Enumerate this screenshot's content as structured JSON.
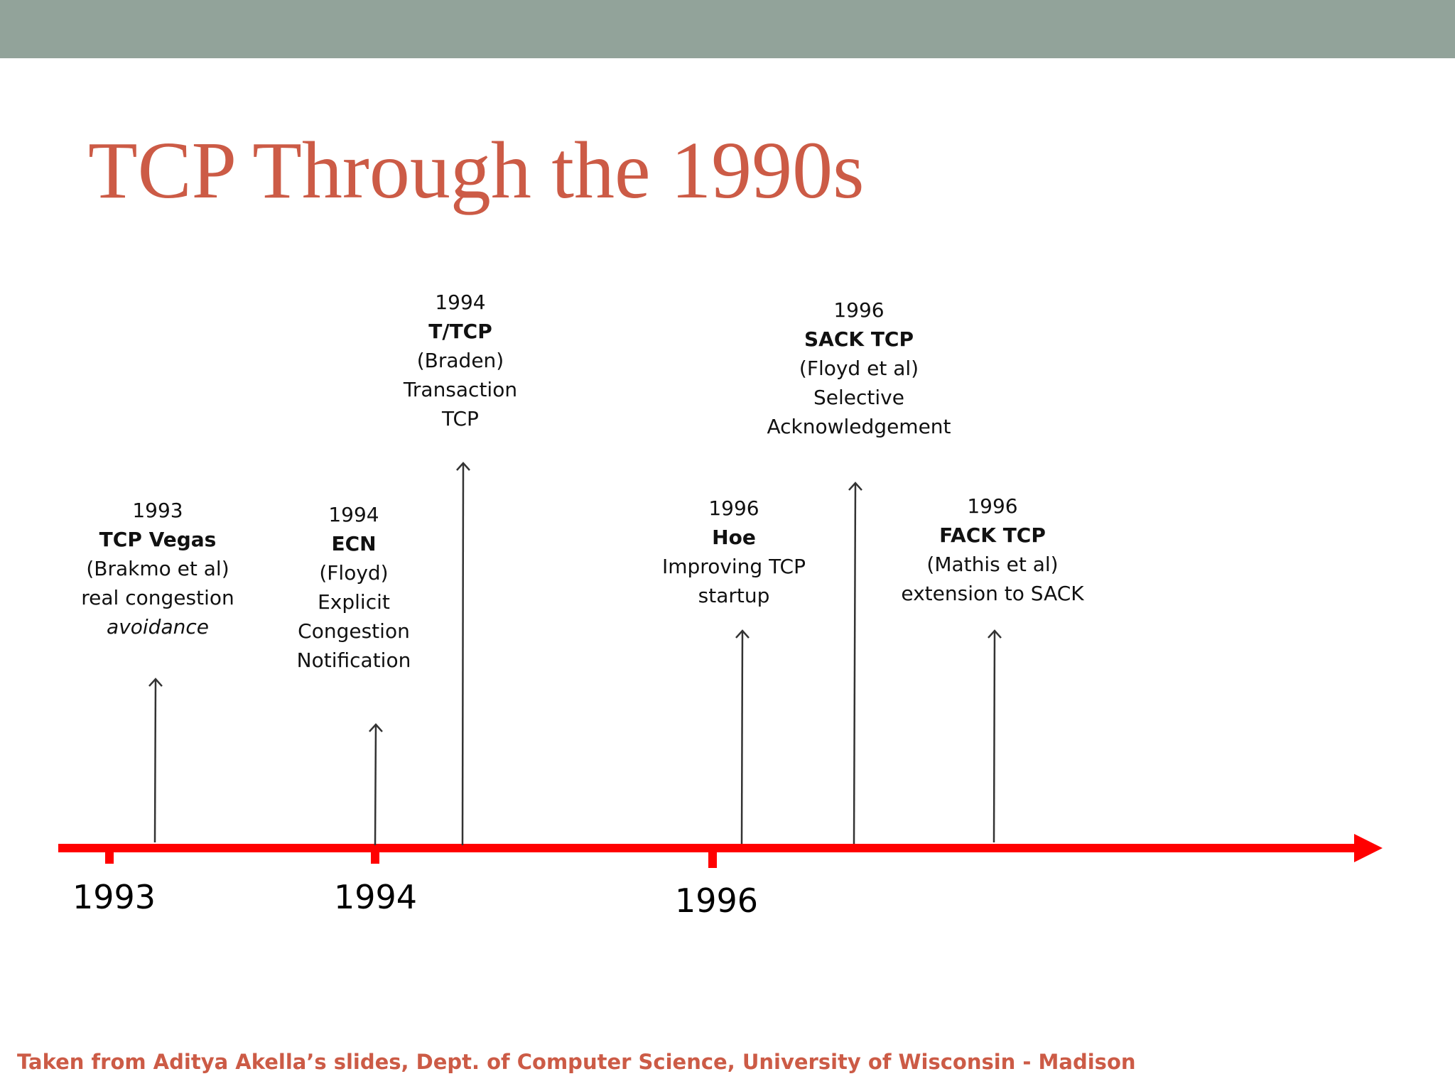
{
  "slide": {
    "title": "TCP Through the 1990s",
    "footer": "Taken from Aditya Akella’s slides, Dept. of Computer Science, University of Wisconsin - Madison"
  },
  "colors": {
    "topbar": "#92a39a",
    "title": "#cc5b46",
    "axis": "#ff0000",
    "arrow": "#333333"
  },
  "axis_ticks": [
    {
      "label": "1993"
    },
    {
      "label": "1994"
    },
    {
      "label": "1996"
    }
  ],
  "events": [
    {
      "year": "1993",
      "name": "TCP Vegas",
      "authors": "(Brakmo et al)",
      "desc1": "real congestion",
      "desc2": "avoidance",
      "desc3": ""
    },
    {
      "year": "1994",
      "name": "ECN",
      "authors": "(Floyd)",
      "desc1": "Explicit",
      "desc2": "Congestion",
      "desc3": "Notification"
    },
    {
      "year": "1994",
      "name": "T/TCP",
      "authors": "(Braden)",
      "desc1": "Transaction",
      "desc2": "TCP",
      "desc3": ""
    },
    {
      "year": "1996",
      "name": "Hoe",
      "authors": "",
      "desc1": "Improving TCP",
      "desc2": "startup",
      "desc3": ""
    },
    {
      "year": "1996",
      "name": "SACK TCP",
      "authors": "(Floyd et al)",
      "desc1": "Selective",
      "desc2": "Acknowledgement",
      "desc3": ""
    },
    {
      "year": "1996",
      "name": "FACK TCP",
      "authors": "(Mathis et al)",
      "desc1": "extension to SACK",
      "desc2": "",
      "desc3": ""
    }
  ]
}
